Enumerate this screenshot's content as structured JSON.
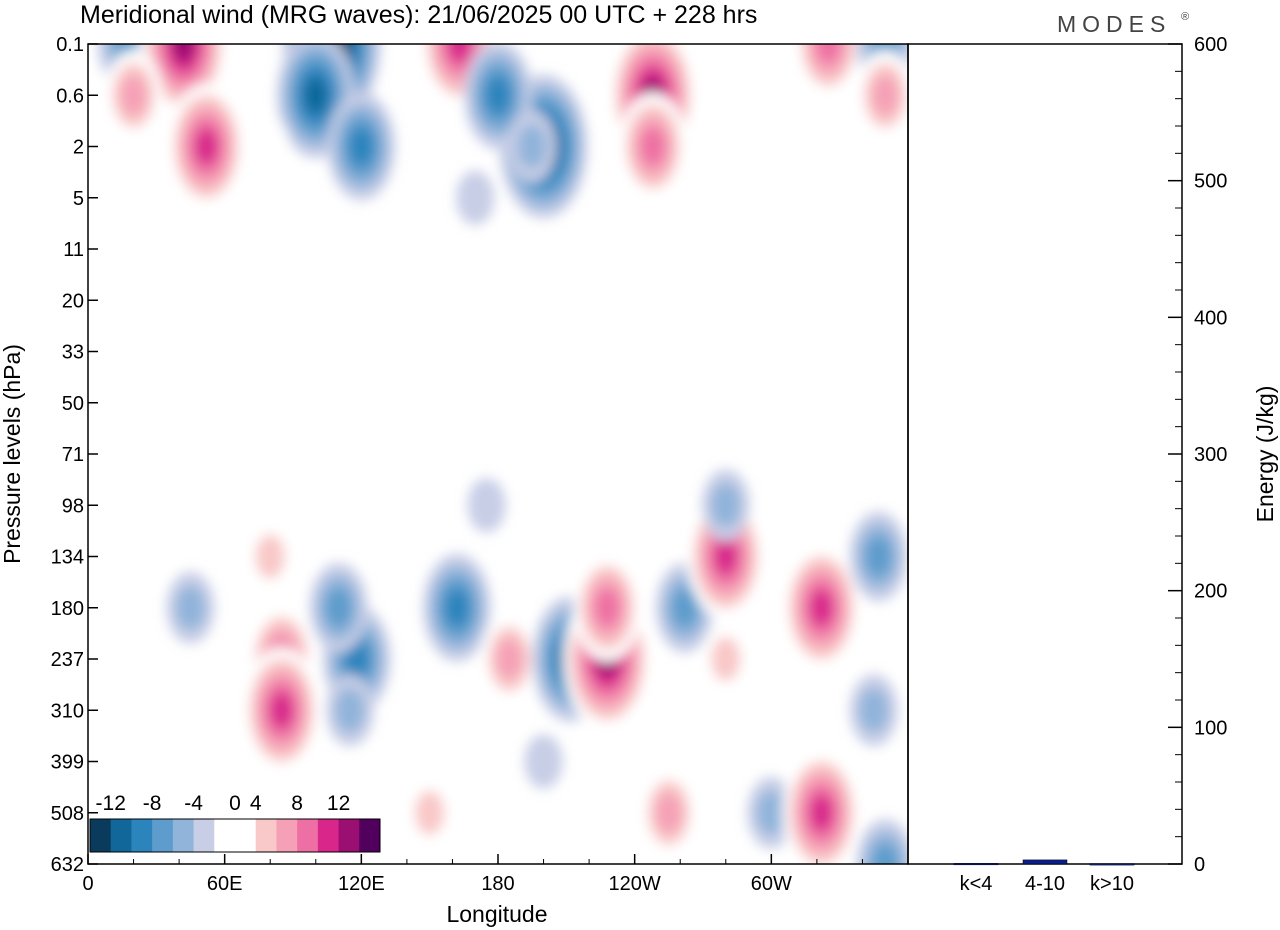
{
  "title": "Meridional wind (MRG waves):  21/06/2025  00 UTC  + 228 hrs",
  "brand": "MODES",
  "brand_mark": "®",
  "chart_data": [
    {
      "type": "heatmap",
      "title": "Meridional wind (MRG waves):  21/06/2025  00 UTC  + 228 hrs",
      "xlabel": "Longitude",
      "ylabel": "Pressure levels (hPa)",
      "xlim": [
        0,
        360
      ],
      "x_ticks": [
        "0",
        "60E",
        "120E",
        "180",
        "120W",
        "60W"
      ],
      "x_tick_values": [
        0,
        60,
        120,
        180,
        240,
        300
      ],
      "y_levels": [
        "0.1",
        "0.6",
        "2",
        "5",
        "11",
        "20",
        "33",
        "50",
        "71",
        "98",
        "134",
        "180",
        "237",
        "310",
        "399",
        "508",
        "632"
      ],
      "colorbar": {
        "tick_labels": [
          "-12",
          "-8",
          "-4",
          "0",
          "4",
          "8",
          "12"
        ],
        "tick_values": [
          -12,
          -8,
          -4,
          0,
          4,
          8,
          12
        ],
        "levels": [
          -14,
          -12,
          -10,
          -8,
          -6,
          -4,
          -2,
          2,
          4,
          6,
          8,
          10,
          12,
          14
        ],
        "colors": [
          "#0b3b5c",
          "#11679a",
          "#2c84bd",
          "#5d9ccc",
          "#91b4da",
          "#c7cee6",
          "#ffffff",
          "#ffffff",
          "#f9c8c8",
          "#f5a0b6",
          "#ee6fa3",
          "#d8268b",
          "#9a0f71",
          "#52005e"
        ]
      },
      "features": [
        {
          "lon": 17,
          "p": "0.1",
          "value": -6
        },
        {
          "lon": 42,
          "p": "0.1",
          "value": 12
        },
        {
          "lon": 52,
          "p": "2",
          "value": 10
        },
        {
          "lon": 20,
          "p": "0.6",
          "value": 6
        },
        {
          "lon": 107,
          "p": "0.1",
          "value": -14
        },
        {
          "lon": 100,
          "p": "0.6",
          "value": -10
        },
        {
          "lon": 120,
          "p": "2",
          "value": -8
        },
        {
          "lon": 163,
          "p": "0.1",
          "value": 10
        },
        {
          "lon": 200,
          "p": "2",
          "value": -12
        },
        {
          "lon": 180,
          "p": "0.6",
          "value": -8
        },
        {
          "lon": 248,
          "p": "0.6",
          "value": 12
        },
        {
          "lon": 248,
          "p": "2",
          "value": 8
        },
        {
          "lon": 325,
          "p": "0.1",
          "value": 8
        },
        {
          "lon": 350,
          "p": "0.1",
          "value": -6
        },
        {
          "lon": 350,
          "p": "0.6",
          "value": 6
        },
        {
          "lon": 80,
          "p": "2",
          "value": 2
        },
        {
          "lon": 78,
          "p": "5",
          "value": 2
        },
        {
          "lon": 170,
          "p": "5",
          "value": -2
        },
        {
          "lon": 195,
          "p": "2",
          "value": -4
        },
        {
          "lon": 270,
          "p": "11",
          "value": 2
        },
        {
          "lon": 85,
          "p": "20",
          "value": 2
        },
        {
          "lon": 45,
          "p": "180",
          "value": -4
        },
        {
          "lon": 25,
          "p": "134",
          "value": 2
        },
        {
          "lon": 85,
          "p": "237",
          "value": 8
        },
        {
          "lon": 85,
          "p": "310",
          "value": 10
        },
        {
          "lon": 80,
          "p": "134",
          "value": 4
        },
        {
          "lon": 118,
          "p": "237",
          "value": -8
        },
        {
          "lon": 110,
          "p": "180",
          "value": -6
        },
        {
          "lon": 115,
          "p": "310",
          "value": -4
        },
        {
          "lon": 162,
          "p": "180",
          "value": -8
        },
        {
          "lon": 150,
          "p": "508",
          "value": 4
        },
        {
          "lon": 185,
          "p": "237",
          "value": 6
        },
        {
          "lon": 212,
          "p": "237",
          "value": -10
        },
        {
          "lon": 200,
          "p": "399",
          "value": -2
        },
        {
          "lon": 228,
          "p": "237",
          "value": 12
        },
        {
          "lon": 228,
          "p": "180",
          "value": 8
        },
        {
          "lon": 262,
          "p": "180",
          "value": -6
        },
        {
          "lon": 255,
          "p": "508",
          "value": 6
        },
        {
          "lon": 280,
          "p": "134",
          "value": 10
        },
        {
          "lon": 280,
          "p": "237",
          "value": 4
        },
        {
          "lon": 300,
          "p": "508",
          "value": -4
        },
        {
          "lon": 322,
          "p": "180",
          "value": 10
        },
        {
          "lon": 322,
          "p": "508",
          "value": 10
        },
        {
          "lon": 347,
          "p": "134",
          "value": -6
        },
        {
          "lon": 345,
          "p": "310",
          "value": -4
        },
        {
          "lon": 350,
          "p": "632",
          "value": -6
        },
        {
          "lon": 140,
          "p": "98",
          "value": 2
        },
        {
          "lon": 175,
          "p": "98",
          "value": -2
        },
        {
          "lon": 280,
          "p": "98",
          "value": -4
        }
      ]
    },
    {
      "type": "bar",
      "ylabel": "Energy (J/kg)",
      "ylim": [
        0,
        600
      ],
      "y_ticks": [
        "0",
        "100",
        "200",
        "300",
        "400",
        "500",
        "600"
      ],
      "categories": [
        "k<4",
        "4-10",
        "k>10"
      ],
      "values": [
        0.5,
        3,
        0.3
      ],
      "bar_color": "#0a1e8c"
    }
  ]
}
